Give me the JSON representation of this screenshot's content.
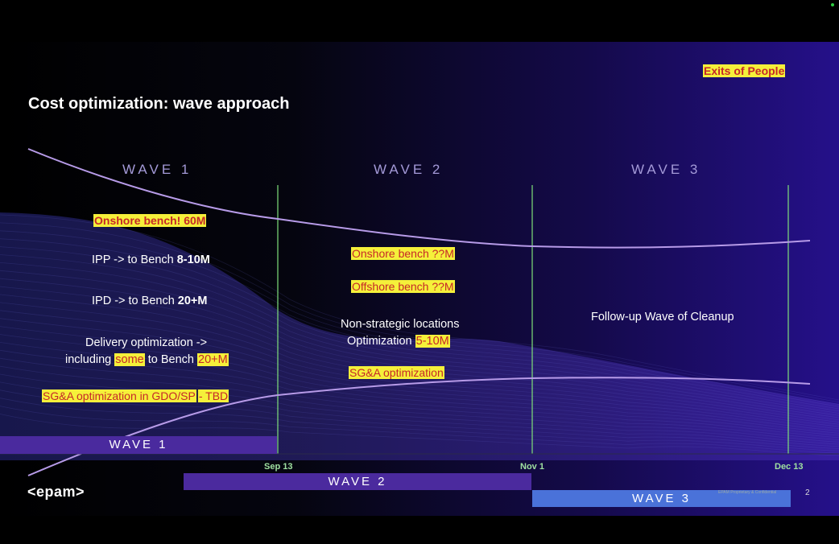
{
  "slide": {
    "title": "Cost optimization: wave approach",
    "exits_label": "Exits of People",
    "wave_headers": [
      "WAVE 1",
      "WAVE 2",
      "WAVE 3"
    ],
    "wave1": {
      "onshore_bench": "Onshore bench! 60M",
      "ipp_prefix": "IPP -> to Bench ",
      "ipp_value": "8-10M",
      "ipd_prefix": "IPD -> to Bench ",
      "ipd_value": "20+M",
      "delivery_line1": "Delivery optimization ->",
      "delivery_including": "including ",
      "delivery_some": "some",
      "delivery_to_bench": " to Bench ",
      "delivery_value": "20+M",
      "sga_left": "SG&A optimization in GDO/SP",
      "sga_right": "- TBD"
    },
    "wave2": {
      "onshore_bench": "Onshore bench ??M",
      "offshore_bench": "Offshore bench ??M",
      "nonstrategic_line1": "Non-strategic locations",
      "nonstrategic_line2": "Optimization ",
      "nonstrategic_value": "5-10M",
      "sga": "SG&A optimization"
    },
    "wave3": {
      "followup": "Follow-up Wave of Cleanup"
    },
    "timeline": {
      "dates": [
        "Sep 13",
        "Nov 1",
        "Dec 13"
      ],
      "bars": [
        {
          "label": "WAVE 1",
          "color": "#4a2a9e"
        },
        {
          "label": "WAVE 2",
          "color": "#4b2a9e"
        },
        {
          "label": "WAVE 3",
          "color": "#4a72d9"
        }
      ]
    },
    "footer": {
      "logo": "<epam>",
      "confidential": "EPAM Proprietary & Confidential",
      "page_number": "2"
    },
    "colors": {
      "highlight": "#f5f03a",
      "highlight_text": "#c62828",
      "divider": "#7fe07a",
      "curve": "#b79be8",
      "wave_header": "#a49ad8"
    }
  }
}
